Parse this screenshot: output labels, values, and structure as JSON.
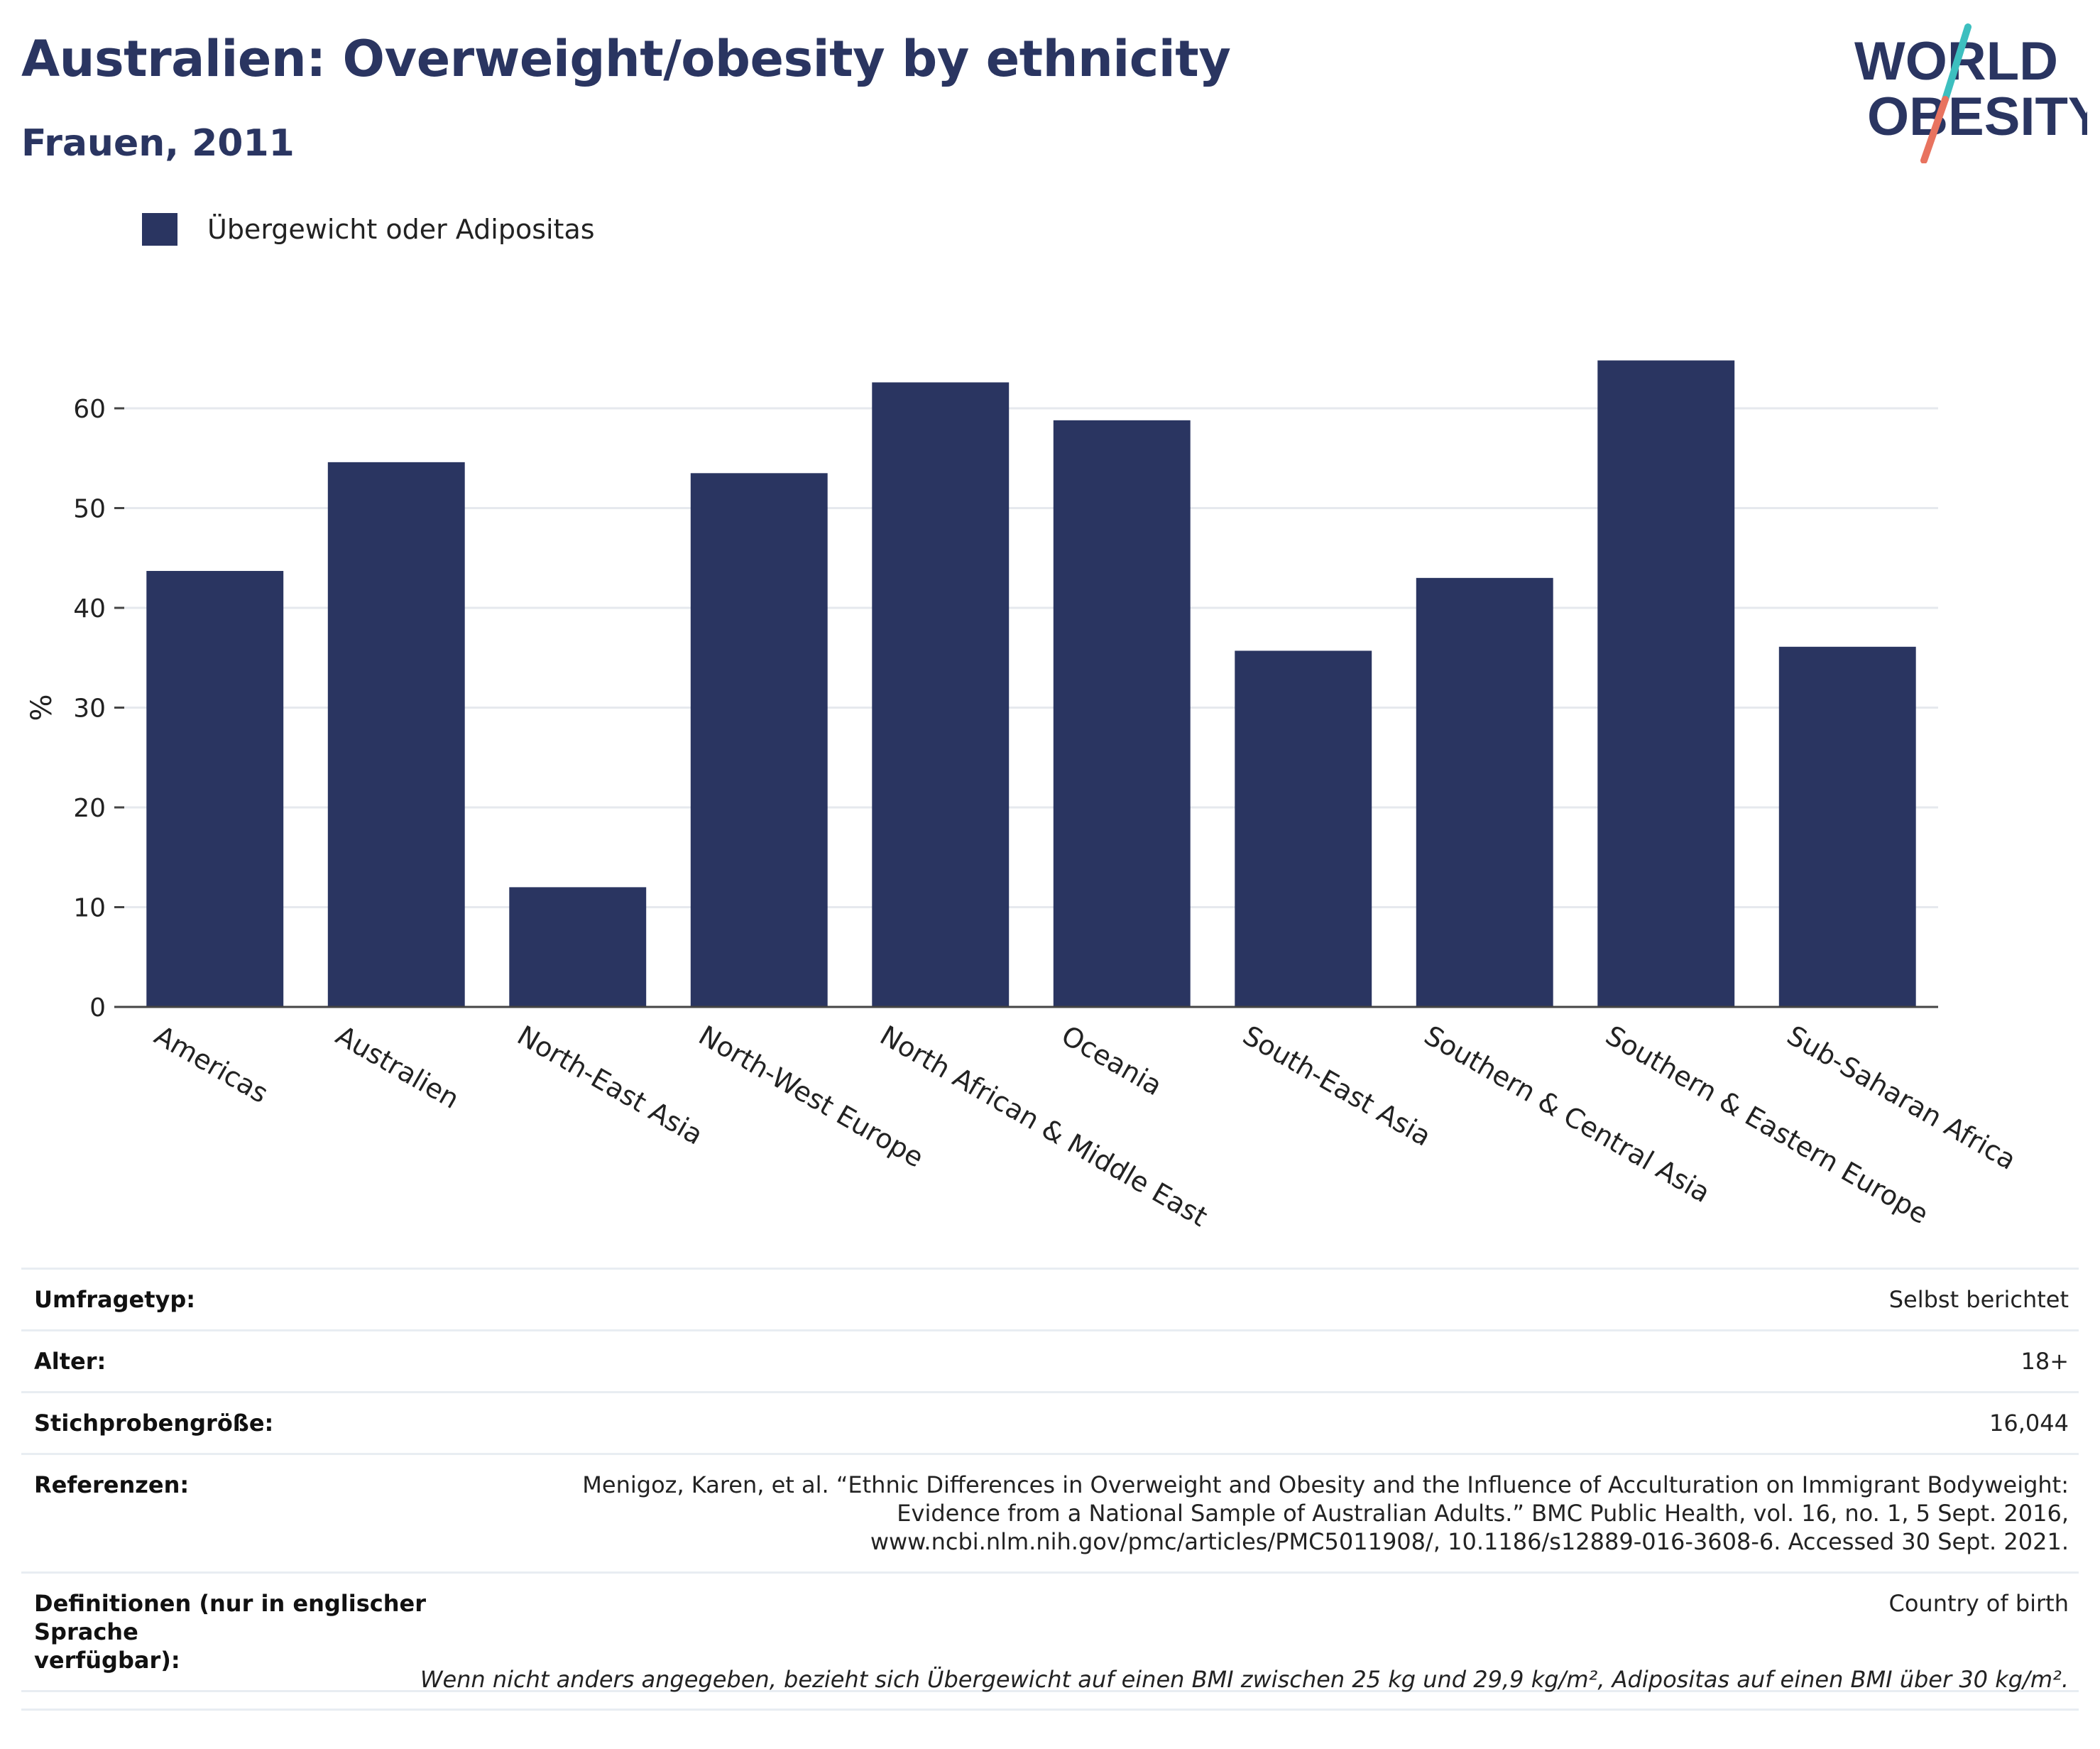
{
  "header": {
    "title": "Australien: Overweight/obesity by ethnicity",
    "subtitle": "Frauen, 2011"
  },
  "logo": {
    "line1": "WORLD",
    "line2": "OBESITY",
    "colors": {
      "text": "#2a3561",
      "slash_top": "#3dbfbf",
      "slash_bottom": "#e8735f"
    }
  },
  "legend": {
    "label": "Übergewicht oder Adipositas",
    "color": "#2a3561"
  },
  "chart_data": {
    "type": "bar",
    "categories": [
      "Americas",
      "Australien",
      "North-East Asia",
      "North-West Europe",
      "North African & Middle East",
      "Oceania",
      "South-East Asia",
      "Southern & Central Asia",
      "Southern & Eastern Europe",
      "Sub-Saharan Africa"
    ],
    "series": [
      {
        "name": "Übergewicht oder Adipositas",
        "values": [
          43.7,
          54.6,
          12.0,
          53.5,
          62.6,
          58.8,
          35.7,
          43.0,
          64.8,
          36.1
        ],
        "color": "#2a3561"
      }
    ],
    "xlabel": "",
    "ylabel": "%",
    "ylim": [
      0,
      70
    ],
    "yticks": [
      0,
      10,
      20,
      30,
      40,
      50,
      60
    ],
    "grid": true,
    "legend_position": "top-left"
  },
  "info": [
    {
      "label": "Umfragetyp:",
      "value": "Selbst berichtet"
    },
    {
      "label": "Alter:",
      "value": "18+"
    },
    {
      "label": "Stichprobengröße:",
      "value": "16,044"
    },
    {
      "label": "Referenzen:",
      "value_lines": [
        "Menigoz, Karen, et al. “Ethnic Differences in Overweight and Obesity and the Influence of Acculturation on Immigrant Bodyweight:",
        "Evidence from a National Sample of Australian Adults.” BMC Public Health, vol. 16, no. 1, 5 Sept. 2016,",
        "www.ncbi.nlm.nih.gov/pmc/articles/PMC5011908/, 10.1186/s12889-016-3608-6. Accessed 30 Sept. 2021."
      ]
    },
    {
      "label_lines": [
        "Definitionen (nur in englischer Sprache",
        "verfügbar):"
      ],
      "value": "Country of birth"
    }
  ],
  "footnote": "Wenn nicht anders angegeben, bezieht sich Übergewicht auf einen BMI zwischen 25 kg und 29,9 kg/m², Adipositas auf einen BMI über 30 kg/m²."
}
